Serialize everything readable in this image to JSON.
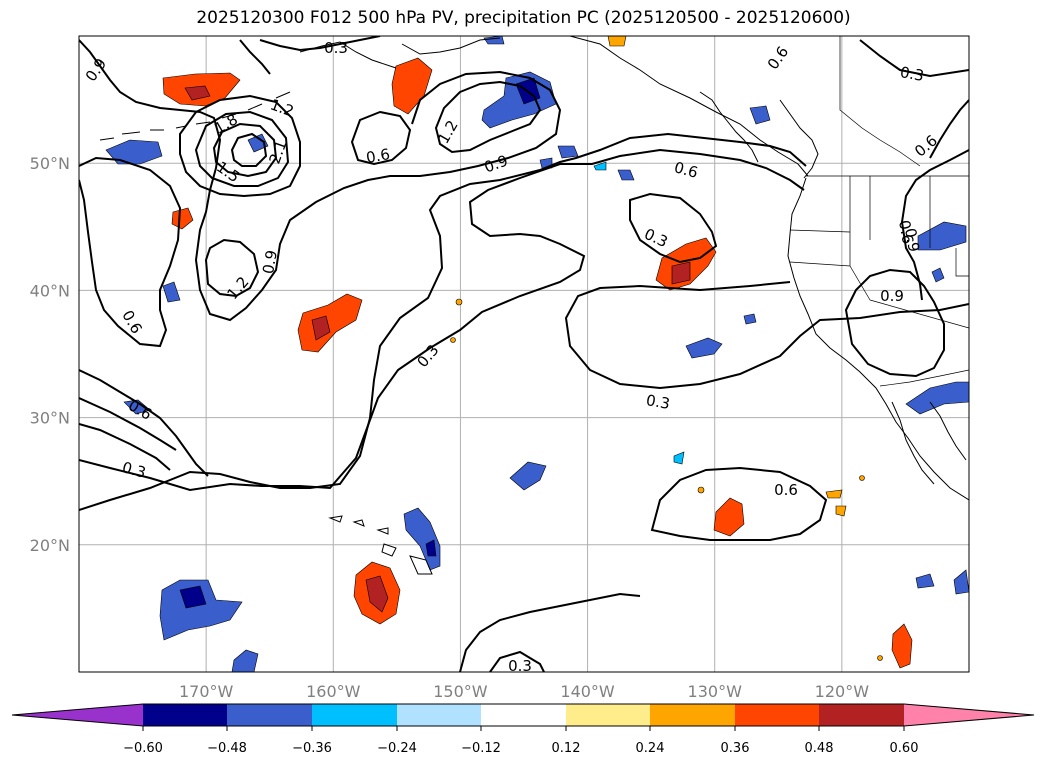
{
  "title": "2025120300 F012 500 hPa PV, precipitation PC (2025120500 - 2025120600)",
  "map": {
    "lon_range": [
      -180,
      -110
    ],
    "lat_range": [
      10,
      60
    ],
    "lon_ticks": [
      {
        "value": -170,
        "label": "170°W"
      },
      {
        "value": -160,
        "label": "160°W"
      },
      {
        "value": -150,
        "label": "150°W"
      },
      {
        "value": -140,
        "label": "140°W"
      },
      {
        "value": -130,
        "label": "130°W"
      },
      {
        "value": -120,
        "label": "120°W"
      }
    ],
    "lat_ticks": [
      {
        "value": 50,
        "label": "50°N"
      },
      {
        "value": 40,
        "label": "40°N"
      },
      {
        "value": 30,
        "label": "30°N"
      },
      {
        "value": 20,
        "label": "20°N"
      }
    ],
    "grid": true
  },
  "contour_labels": [
    "0.3",
    "0.3",
    "0.3",
    "0.3",
    "0.3",
    "0.3",
    "0.3",
    "0.6",
    "0.6",
    "0.6",
    "0.6",
    "0.6",
    "0.6",
    "0.6",
    "0.6",
    "0.9",
    "0.9",
    "0.9",
    "0.9",
    "0.9",
    "1.2",
    "1.2",
    "1.2",
    "1.5",
    "1.8",
    "2.1",
    "0.6"
  ],
  "colorbar": {
    "ticks": [
      "−0.60",
      "−0.48",
      "−0.36",
      "−0.24",
      "−0.12",
      "0.12",
      "0.24",
      "0.36",
      "0.48",
      "0.60"
    ],
    "colors": [
      "#9932cc",
      "#00008b",
      "#3a5fcd",
      "#00bfff",
      "#b0e2ff",
      "#ffffff",
      "#ffec8b",
      "#ffa500",
      "#ff4500",
      "#b22222",
      "#ff82ab"
    ]
  }
}
